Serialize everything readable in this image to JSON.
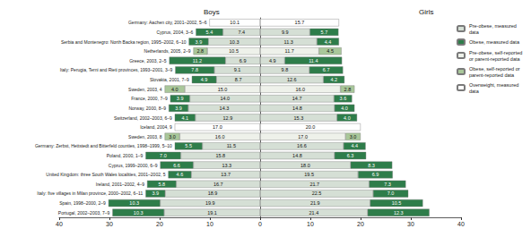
{
  "chart_data": [
    {
      "type": "bar",
      "title": "Boys",
      "orientation": "horizontal",
      "stacked": true,
      "data_labels": true,
      "grid": false,
      "legend": "right",
      "categories": [
        "Germany: Aachen city, 2001–2002, 5–6",
        "Cyprus, 2004, 3–6",
        "Serbia and Montenegro: North Backa region, 1995–2002, 6–10",
        "Netherlands, 2005, 2–9",
        "Greece, 2003, 2–5",
        "Italy: Perugia, Terni and Rieti provinces, 1993–2001, 3–9",
        "Slovakia, 2001, 7–9",
        "Sweden, 2003, 4",
        "France, 2000, 7–9",
        "Norway, 2000, 8–9",
        "Switzerland, 2002–2003, 6–9",
        "Iceland, 2004, 9",
        "Sweden, 2003, 8",
        "Germany: Zerbst, Hettstedt and Bitterfeld counties, 1998–1999, 5–10",
        "Poland, 2000, 1–9",
        "Cyprus, 1999–2000, 6–9",
        "United Kingdom: three South Wales localities, 2001–2002, 5",
        "Ireland, 2001–2002, 4–9",
        "Italy: five villages in Milan province, 2000–2002, 6–11",
        "Spain, 1998–2000, 2–9",
        "Portugal, 2002–2003, 7–9"
      ],
      "xlim": [
        0,
        40
      ],
      "xticks": [
        0,
        10,
        20,
        30,
        40
      ],
      "series": [
        {
          "name": "Pre-obese, measured data",
          "color": "#d5dfd5",
          "values": [
            null,
            7.4,
            10.3,
            null,
            6.9,
            9.1,
            8.7,
            null,
            14.0,
            14.3,
            12.9,
            null,
            null,
            11.5,
            15.8,
            13.3,
            13.7,
            16.7,
            18.9,
            19.9,
            19.1
          ],
          "value_labels": [
            null,
            "7.4",
            "10.3",
            null,
            "6.9",
            "9.1",
            "8.7",
            null,
            "14.0",
            "14.3",
            "12.9",
            null,
            null,
            "11.5",
            "15.8",
            "13.3",
            "13.7",
            "16.7",
            "18.9",
            "19.9",
            "19.1"
          ]
        },
        {
          "name": "Obese, measured data",
          "color": "#2e7d4a",
          "values": [
            null,
            5.4,
            3.9,
            null,
            11.2,
            7.8,
            4.9,
            null,
            3.9,
            3.9,
            4.1,
            null,
            null,
            5.5,
            7.0,
            6.6,
            4.6,
            5.8,
            3.9,
            10.3,
            10.3
          ],
          "value_labels": [
            null,
            "5.4",
            "3.9",
            null,
            "11.2",
            "7.8",
            "4.9",
            null,
            "3.9",
            "3.9",
            "4.1",
            null,
            null,
            "5.5",
            "7.0",
            "6.6",
            "4.6",
            "5.8",
            "3.9",
            "10.3",
            "10.3"
          ]
        },
        {
          "name": "Pre-obese, self-reported or parent-reported data",
          "color": "#eef1ea",
          "values": [
            null,
            null,
            null,
            10.5,
            null,
            null,
            null,
            15.0,
            null,
            null,
            null,
            null,
            16.0,
            null,
            null,
            null,
            null,
            null,
            null,
            null,
            null
          ],
          "value_labels": [
            null,
            null,
            null,
            "10.5",
            null,
            null,
            null,
            "15.0",
            null,
            null,
            null,
            null,
            "16.0",
            null,
            null,
            null,
            null,
            null,
            null,
            null,
            null
          ]
        },
        {
          "name": "Obese, self-reported or parent-reported data",
          "color": "#a9c79a",
          "values": [
            null,
            null,
            null,
            2.8,
            null,
            null,
            null,
            4.0,
            null,
            null,
            null,
            null,
            3.0,
            null,
            null,
            null,
            null,
            null,
            null,
            null,
            null
          ],
          "value_labels": [
            null,
            null,
            null,
            "2.8",
            null,
            null,
            null,
            "4.0",
            null,
            null,
            null,
            null,
            "3.0",
            null,
            null,
            null,
            null,
            null,
            null,
            null,
            null
          ]
        },
        {
          "name": "Overweight, measured data",
          "color": "#ffffff",
          "values": [
            10.1,
            null,
            null,
            null,
            null,
            null,
            null,
            null,
            null,
            null,
            null,
            17.0,
            null,
            null,
            null,
            null,
            null,
            null,
            null,
            null,
            null
          ],
          "value_labels": [
            "10.1",
            null,
            null,
            null,
            null,
            null,
            null,
            null,
            null,
            null,
            null,
            "17.0",
            null,
            null,
            null,
            null,
            null,
            null,
            null,
            null,
            null
          ]
        }
      ]
    },
    {
      "type": "bar",
      "title": "Girls",
      "orientation": "horizontal",
      "stacked": true,
      "data_labels": true,
      "grid": false,
      "legend": "right",
      "tick_labels": "x",
      "categories": [
        "Germany: Aachen city, 2001–2002, 5–6",
        "Cyprus, 2004, 3–6",
        "Serbia and Montenegro: North Backa region, 1995–2002, 6–10",
        "Netherlands, 2005, 2–9",
        "Greece, 2003, 2–5",
        "Italy: Perugia, Terni and Rieti provinces, 1993–2001, 3–9",
        "Slovakia, 2001, 7–9",
        "Sweden, 2003, 4",
        "France, 2000, 7–9",
        "Norway, 2000, 8–9",
        "Switzerland, 2002–2003, 6–9",
        "Iceland, 2004, 9",
        "Sweden, 2003, 8",
        "Germany: Zerbst, Hettstedt and Bitterfeld counties, 1998–1999, 5–10",
        "Poland, 2000, 1–9",
        "Cyprus, 1999–2000, 6–9",
        "United Kingdom: three South Wales localities, 2001–2002, 5",
        "Ireland, 2001–2002, 4–9",
        "Italy: five villages in Milan province, 2000–2002, 6–11",
        "Spain, 1998–2000, 2–9",
        "Portugal, 2002–2003, 7–9"
      ],
      "xlim": [
        0,
        40
      ],
      "xticks": [
        10,
        20,
        30,
        40
      ],
      "series": [
        {
          "name": "Pre-obese, measured data",
          "color": "#d5dfd5",
          "values": [
            null,
            9.9,
            11.3,
            null,
            4.9,
            9.8,
            12.6,
            null,
            14.7,
            14.8,
            15.3,
            null,
            null,
            16.6,
            14.8,
            18.0,
            19.5,
            21.7,
            22.5,
            21.9,
            21.4
          ],
          "value_labels": [
            null,
            "9.9",
            "11.3",
            null,
            "4.9",
            "9.8",
            "12.6",
            null,
            "14.7",
            "14.8",
            "15.3",
            null,
            null,
            "16.6",
            "14.8",
            "18.0",
            "19.5",
            "21.7",
            "22.5",
            "21.9",
            "21.4"
          ]
        },
        {
          "name": "Obese, measured data",
          "color": "#2e7d4a",
          "values": [
            null,
            5.7,
            4.4,
            null,
            11.4,
            6.7,
            4.2,
            null,
            3.6,
            4.0,
            4.0,
            null,
            null,
            4.4,
            6.3,
            8.3,
            6.9,
            7.3,
            7.0,
            10.5,
            12.3
          ],
          "value_labels": [
            null,
            "5.7",
            "4.4",
            null,
            "11.4",
            "6.7",
            "4.2",
            null,
            "3.6",
            "4.0",
            "4.0",
            null,
            null,
            "4.4",
            "6.3",
            "8.3",
            "6.9",
            "7.3",
            "7.0",
            "10.5",
            "12.3"
          ]
        },
        {
          "name": "Pre-obese, self-reported or parent-reported data",
          "color": "#eef1ea",
          "values": [
            null,
            null,
            null,
            11.7,
            null,
            null,
            null,
            16.0,
            null,
            null,
            null,
            null,
            17.0,
            null,
            null,
            null,
            null,
            null,
            null,
            null,
            null
          ],
          "value_labels": [
            null,
            null,
            null,
            "11.7",
            null,
            null,
            null,
            "16.0",
            null,
            null,
            null,
            null,
            "17.0",
            null,
            null,
            null,
            null,
            null,
            null,
            null,
            null
          ]
        },
        {
          "name": "Obese, self-reported or parent-reported data",
          "color": "#a9c79a",
          "values": [
            null,
            null,
            null,
            4.5,
            null,
            null,
            null,
            2.8,
            null,
            null,
            null,
            null,
            3.0,
            null,
            null,
            null,
            null,
            null,
            null,
            null,
            null
          ],
          "value_labels": [
            null,
            null,
            null,
            "4.5",
            null,
            null,
            null,
            "2.8",
            null,
            null,
            null,
            null,
            "3.0",
            null,
            null,
            null,
            null,
            null,
            null,
            null,
            null
          ]
        },
        {
          "name": "Overweight, measured data",
          "color": "#ffffff",
          "values": [
            15.7,
            null,
            null,
            null,
            null,
            null,
            null,
            null,
            null,
            null,
            null,
            20.0,
            null,
            null,
            null,
            null,
            null,
            null,
            null,
            null,
            null
          ],
          "value_labels": [
            "15.7",
            null,
            null,
            null,
            null,
            null,
            null,
            null,
            null,
            null,
            null,
            "20.0",
            null,
            null,
            null,
            null,
            null,
            null,
            null,
            null,
            null
          ]
        }
      ]
    }
  ]
}
